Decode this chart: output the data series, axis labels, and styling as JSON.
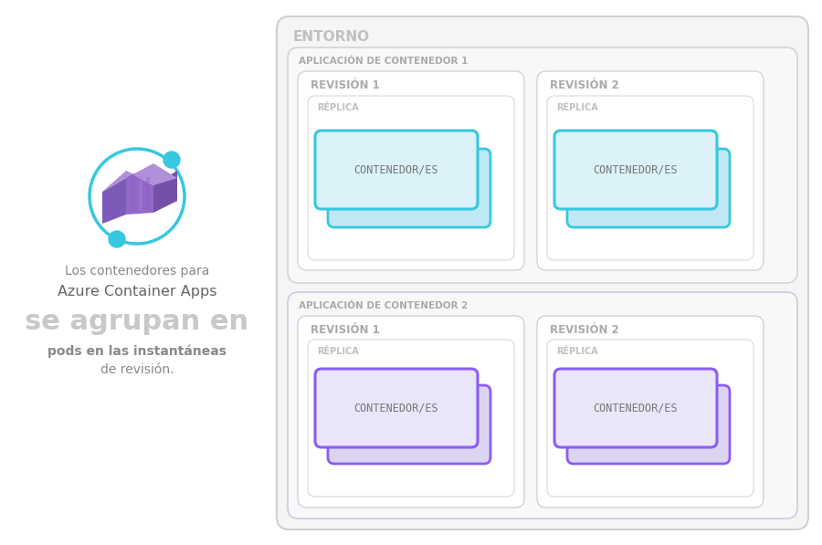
{
  "bg_color": "#ffffff",
  "entorno_label": "ENTORNO",
  "app1_label": "APLICACIÓN DE CONTENEDOR 1",
  "app2_label": "APLICACIÓN DE CONTENEDOR 2",
  "rev1_label": "REVISIÓN 1",
  "rev2_label": "REVISIÓN 2",
  "replica_label": "RÉPLICA",
  "contenedor_label": "CONTENEDOR/ES",
  "text_line1": "Los contenedores para",
  "text_line2": "Azure Container Apps",
  "text_line3": "se agrupan en",
  "text_line4": "pods en las instantáneas",
  "text_line5": "de revisión.",
  "border_outer": "#d0d0d0",
  "border_app1": "#d4d4d4",
  "border_app2": "#cccce0",
  "border_rev": "#d4d4d4",
  "border_replica": "#d8d8d8",
  "blue_fill": "#daf2f8",
  "blue_border": "#35c8e0",
  "blue_shadow_fill": "#c0e8f5",
  "purple_fill": "#eae5f8",
  "purple_border": "#8b5cf6",
  "purple_shadow_fill": "#dcd5f0",
  "label_gray": "#aaaaaa",
  "label_light": "#c0c0c0",
  "text_small": "#888888",
  "text_medium": "#777777",
  "text_large_color": "#c8c8c8",
  "teal_color": "#35c8e0",
  "icon_purple_left": "#7b5ab8",
  "icon_purple_mid": "#9168c8",
  "icon_purple_right": "#7450a8",
  "icon_purple_top": "#b090d8",
  "icon_purple_top2": "#9878c0"
}
